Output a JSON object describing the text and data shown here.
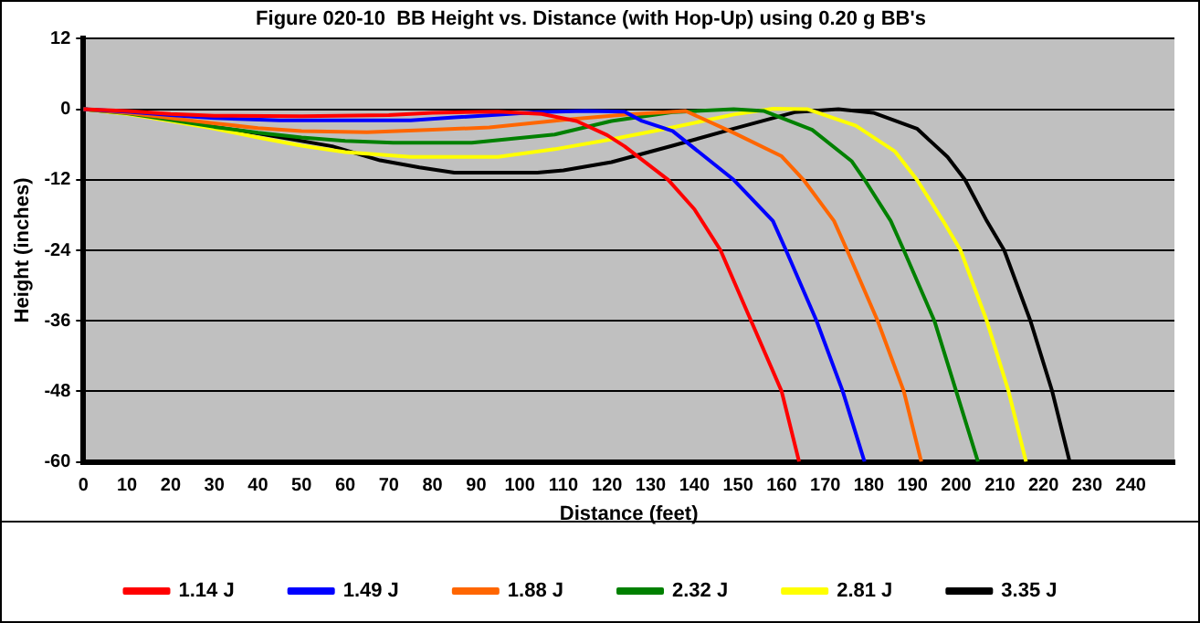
{
  "chart_data": {
    "type": "line",
    "title": "Figure 020-10  BB Height vs. Distance (with Hop-Up) using 0.20 g BB's",
    "xlabel": "Distance (feet)",
    "ylabel": "Height (inches)",
    "xlim": [
      0,
      250
    ],
    "xticks": [
      0,
      10,
      20,
      30,
      40,
      50,
      60,
      70,
      80,
      90,
      100,
      110,
      120,
      130,
      140,
      150,
      160,
      170,
      180,
      190,
      200,
      210,
      220,
      230,
      240
    ],
    "ylim": [
      -60,
      12
    ],
    "yticks": [
      -60,
      -48,
      -36,
      -24,
      -12,
      0,
      12
    ],
    "grid": "y",
    "legend": "bottom",
    "marker": "none",
    "line_style": "solid",
    "series": [
      {
        "name": "1.14 J",
        "color": "#ff0000",
        "x": [
          0,
          10,
          20,
          30,
          50,
          70,
          80,
          95,
          105,
          113,
          120,
          124,
          134,
          140,
          146,
          153,
          160,
          164
        ],
        "values": [
          0,
          -0.3,
          -0.8,
          -1.1,
          -1.2,
          -1.0,
          -0.6,
          -0.4,
          -0.8,
          -2,
          -4.4,
          -6.3,
          -12,
          -17,
          -24,
          -36,
          -48,
          -60
        ]
      },
      {
        "name": "1.49 J",
        "color": "#0000ff",
        "x": [
          0,
          10,
          20,
          30,
          45,
          60,
          75,
          85,
          104,
          115,
          124,
          128,
          135,
          149,
          158,
          161,
          168,
          174,
          179
        ],
        "values": [
          0,
          -0.4,
          -1,
          -1.5,
          -1.9,
          -1.9,
          -1.9,
          -1.4,
          -0.5,
          -0.3,
          -0.4,
          -2,
          -3.7,
          -12,
          -19,
          -24,
          -36,
          -48,
          -60
        ]
      },
      {
        "name": "1.88 J",
        "color": "#ff6600",
        "x": [
          0,
          10,
          20,
          30,
          40,
          50,
          65,
          80,
          93,
          110,
          124,
          138,
          149,
          160,
          165,
          172,
          175,
          182,
          188,
          192
        ],
        "values": [
          0,
          -0.6,
          -1.5,
          -2.4,
          -3.2,
          -3.7,
          -3.9,
          -3.5,
          -3.1,
          -1.8,
          -0.9,
          -0.3,
          -4,
          -8,
          -12,
          -19,
          -24,
          -36,
          -48,
          -60
        ]
      },
      {
        "name": "2.32 J",
        "color": "#008000",
        "x": [
          0,
          10,
          20,
          30,
          40,
          50,
          60,
          71,
          89,
          108,
          121,
          135,
          149,
          156,
          167,
          176,
          179,
          185,
          188,
          195,
          200,
          205
        ],
        "values": [
          0,
          -0.7,
          -1.8,
          -3,
          -4,
          -4.8,
          -5.4,
          -5.7,
          -5.7,
          -4.3,
          -2,
          -0.5,
          0,
          -0.3,
          -3.5,
          -8.8,
          -12,
          -19,
          -24,
          -36,
          -48,
          -60
        ]
      },
      {
        "name": "2.81 J",
        "color": "#ffff00",
        "x": [
          0,
          10,
          20,
          30,
          40,
          50,
          60,
          75,
          95,
          108,
          121,
          135,
          149,
          158,
          166,
          177,
          186,
          191,
          197,
          201,
          207,
          212,
          216
        ],
        "values": [
          0,
          -0.8,
          -2,
          -3.3,
          -4.8,
          -6.2,
          -7.3,
          -8.1,
          -8.1,
          -6.8,
          -5.1,
          -3.1,
          -0.9,
          0.1,
          0,
          -2.8,
          -7.2,
          -12,
          -19,
          -24,
          -36,
          -48,
          -60
        ]
      },
      {
        "name": "3.35 J",
        "color": "#000000",
        "x": [
          0,
          12,
          26,
          40,
          57,
          68,
          77,
          85,
          104,
          110,
          121,
          135,
          149,
          163,
          173,
          181,
          191,
          198,
          202,
          207,
          211,
          217,
          222,
          226
        ],
        "values": [
          0,
          -0.8,
          -2.6,
          -4.1,
          -6.3,
          -8.7,
          -9.9,
          -10.8,
          -10.8,
          -10.4,
          -9,
          -6.2,
          -3.3,
          -0.5,
          0,
          -0.6,
          -3.3,
          -8.1,
          -12,
          -19,
          -24,
          -36,
          -48,
          -60
        ]
      }
    ]
  }
}
